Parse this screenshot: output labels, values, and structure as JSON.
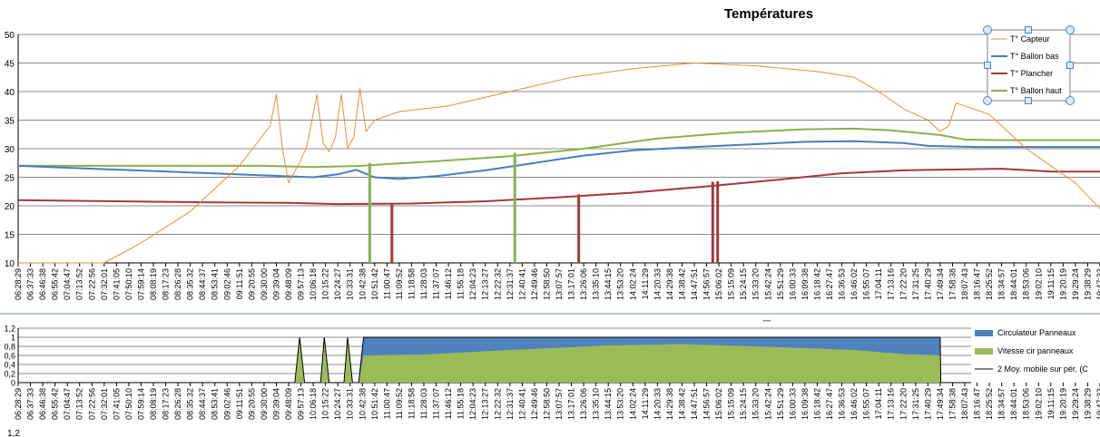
{
  "colors": {
    "capteur": "#E3923A",
    "ballon_bas": "#4A7EBB",
    "plancher": "#A33A3A",
    "ballon_haut": "#8BB14C",
    "circulateur": "#4F81BD",
    "vitesse": "#9BBB59",
    "moyenne": "#000000",
    "grid": "#8C8C8C"
  },
  "time_labels": [
    "06:28:29",
    "06:37:33",
    "06:46:38",
    "06:55:42",
    "07:04:47",
    "07:13:52",
    "07:22:56",
    "07:32:01",
    "07:41:05",
    "07:50:10",
    "07:59:14",
    "08:08:19",
    "08:17:23",
    "08:26:28",
    "08:35:32",
    "08:44:37",
    "08:53:41",
    "09:02:46",
    "09:11:51",
    "09:20:55",
    "09:30:00",
    "09:39:04",
    "09:48:09",
    "09:57:13",
    "10:06:18",
    "10:15:22",
    "10:24:27",
    "10:33:31",
    "10:42:38",
    "10:51:42",
    "11:00:47",
    "11:09:52",
    "11:18:58",
    "11:28:03",
    "11:37:07",
    "11:46:12",
    "11:55:18",
    "12:04:23",
    "12:13:27",
    "12:22:32",
    "12:31:37",
    "12:40:41",
    "12:49:46",
    "12:58:50",
    "13:07:57",
    "13:17:01",
    "13:26:06",
    "13:35:10",
    "13:44:15",
    "13:53:20",
    "14:02:24",
    "14:11:29",
    "14:20:33",
    "14:29:38",
    "14:38:42",
    "14:47:51",
    "14:56:57",
    "15:06:02",
    "15:15:09",
    "15:24:15",
    "15:33:20",
    "15:42:24",
    "15:51:29",
    "16:00:33",
    "16:09:38",
    "16:18:42",
    "16:27:47",
    "16:36:53",
    "16:46:02",
    "16:55:07",
    "17:04:11",
    "17:13:16",
    "17:22:20",
    "17:31:25",
    "17:40:29",
    "17:49:34",
    "17:58:38",
    "18:07:43",
    "18:16:47",
    "18:25:52",
    "18:34:57",
    "18:44:01",
    "18:53:06",
    "19:02:10",
    "19:11:15",
    "19:20:19",
    "19:29:24",
    "19:38:29",
    "19:47:33"
  ],
  "chart_data": [
    {
      "type": "line",
      "title": "Températures",
      "xlabel": "",
      "ylabel": "",
      "ylim": [
        10,
        50
      ],
      "yticks": [
        "10",
        "15",
        "20",
        "25",
        "30",
        "35",
        "40",
        "45",
        "50"
      ],
      "legend_position": "top-right",
      "series": [
        {
          "key": "capteur",
          "name": "T° Capteur",
          "points": [
            [
              0,
              10
            ],
            [
              7,
              10
            ],
            [
              10,
              13.5
            ],
            [
              14,
              19
            ],
            [
              18,
              27
            ],
            [
              20.5,
              34
            ],
            [
              21,
              39.5
            ],
            [
              21.5,
              30
            ],
            [
              22,
              24
            ],
            [
              22.5,
              26
            ],
            [
              23,
              28
            ],
            [
              23.5,
              30.5
            ],
            [
              24.3,
              39.5
            ],
            [
              24.8,
              31
            ],
            [
              25.3,
              29.5
            ],
            [
              25.8,
              32
            ],
            [
              26.3,
              39.5
            ],
            [
              26.8,
              30
            ],
            [
              27.3,
              32
            ],
            [
              27.8,
              40.5
            ],
            [
              28.3,
              33
            ],
            [
              29,
              35
            ],
            [
              31,
              36.5
            ],
            [
              35,
              37.5
            ],
            [
              40,
              40
            ],
            [
              45,
              42.5
            ],
            [
              50,
              44
            ],
            [
              55,
              45
            ],
            [
              60,
              44.5
            ],
            [
              65,
              43.5
            ],
            [
              68,
              42.5
            ],
            [
              70,
              40
            ],
            [
              72,
              37
            ],
            [
              74,
              35
            ],
            [
              75,
              33
            ],
            [
              75.7,
              34
            ],
            [
              76.3,
              38
            ],
            [
              77,
              37.5
            ],
            [
              79,
              36
            ],
            [
              80,
              34
            ],
            [
              82,
              30
            ],
            [
              86,
              24
            ],
            [
              88,
              19.5
            ],
            [
              89,
              18
            ]
          ]
        },
        {
          "key": "ballon_bas",
          "name": "T° Ballon bas",
          "points": [
            [
              0,
              27
            ],
            [
              24,
              25
            ],
            [
              26,
              25.5
            ],
            [
              27.5,
              26.3
            ],
            [
              29,
              25
            ],
            [
              31,
              24.7
            ],
            [
              34,
              25.2
            ],
            [
              38,
              26.2
            ],
            [
              42,
              27.5
            ],
            [
              46,
              28.8
            ],
            [
              50,
              29.7
            ],
            [
              55,
              30.3
            ],
            [
              60,
              30.8
            ],
            [
              64,
              31.2
            ],
            [
              68,
              31.3
            ],
            [
              72,
              31
            ],
            [
              74,
              30.5
            ],
            [
              78,
              30.3
            ],
            [
              82,
              30.3
            ],
            [
              89,
              30.3
            ]
          ]
        },
        {
          "key": "plancher",
          "name": "T° Plancher",
          "points": [
            [
              0,
              21
            ],
            [
              8,
              20.8
            ],
            [
              16,
              20.6
            ],
            [
              22,
              20.5
            ],
            [
              26,
              20.3
            ],
            [
              32,
              20.4
            ],
            [
              38,
              20.8
            ],
            [
              44,
              21.5
            ],
            [
              50,
              22.3
            ],
            [
              56,
              23.4
            ],
            [
              62,
              24.6
            ],
            [
              67,
              25.7
            ],
            [
              72,
              26.2
            ],
            [
              77,
              26.4
            ],
            [
              80,
              26.5
            ],
            [
              84,
              26
            ],
            [
              89,
              26
            ]
          ]
        },
        {
          "key": "ballon_haut",
          "name": "T° Ballon haut",
          "points": [
            [
              0,
              27
            ],
            [
              20,
              27
            ],
            [
              24,
              26.8
            ],
            [
              28,
              27
            ],
            [
              30,
              27.3
            ],
            [
              34,
              27.8
            ],
            [
              40,
              28.7
            ],
            [
              46,
              30
            ],
            [
              52,
              31.8
            ],
            [
              58,
              32.8
            ],
            [
              64,
              33.4
            ],
            [
              68,
              33.5
            ],
            [
              71,
              33.2
            ],
            [
              75,
              32.4
            ],
            [
              77,
              31.6
            ],
            [
              80,
              31.5
            ],
            [
              89,
              31.5
            ]
          ]
        }
      ],
      "spikes": [
        {
          "series": "ballon_haut",
          "x": 28.6,
          "y": 27.5
        },
        {
          "series": "plancher",
          "x": 30.4,
          "y": 20.3
        },
        {
          "series": "ballon_haut",
          "x": 40.4,
          "y": 29.3
        },
        {
          "series": "plancher",
          "x": 45.6,
          "y": 22
        },
        {
          "series": "plancher",
          "x": 56.5,
          "y": 24.2
        },
        {
          "series": "plancher",
          "x": 56.9,
          "y": 24.3
        }
      ]
    },
    {
      "type": "area",
      "title": "",
      "ylim": [
        0,
        1.2
      ],
      "yticks": [
        "0",
        "0,2",
        "0,4",
        "0,6",
        "0,8",
        "1",
        "1,2"
      ],
      "legend_position": "right",
      "series": [
        {
          "key": "circulateur",
          "name": "Circulateur Panneaux",
          "values_note": "1 when running",
          "points": [
            [
              22.5,
              0
            ],
            [
              22.9,
              1
            ],
            [
              23.3,
              0
            ],
            [
              24.6,
              0
            ],
            [
              24.9,
              1
            ],
            [
              25.3,
              0
            ],
            [
              26.5,
              0
            ],
            [
              26.8,
              1
            ],
            [
              27.2,
              0
            ],
            [
              27.7,
              0
            ],
            [
              28.1,
              1
            ],
            [
              75,
              1
            ],
            [
              75.05,
              0
            ]
          ]
        },
        {
          "key": "vitesse",
          "name": "Vitesse cir panneaux",
          "points": [
            [
              22.5,
              0
            ],
            [
              22.9,
              1
            ],
            [
              23.3,
              0
            ],
            [
              24.6,
              0
            ],
            [
              24.9,
              1
            ],
            [
              25.3,
              0
            ],
            [
              26.5,
              0
            ],
            [
              26.8,
              1
            ],
            [
              27.2,
              0
            ],
            [
              27.7,
              0
            ],
            [
              28.1,
              0.6
            ],
            [
              33,
              0.62
            ],
            [
              40,
              0.72
            ],
            [
              48,
              0.82
            ],
            [
              54,
              0.85
            ],
            [
              62,
              0.78
            ],
            [
              68,
              0.72
            ],
            [
              72,
              0.63
            ],
            [
              75,
              0.6
            ],
            [
              75.05,
              0
            ]
          ]
        },
        {
          "key": "moyenne",
          "name": "2 Moy. mobile sur pér. (C"
        }
      ]
    }
  ],
  "ui": {
    "resize_handle": "••••",
    "partial_label": "1,2"
  }
}
